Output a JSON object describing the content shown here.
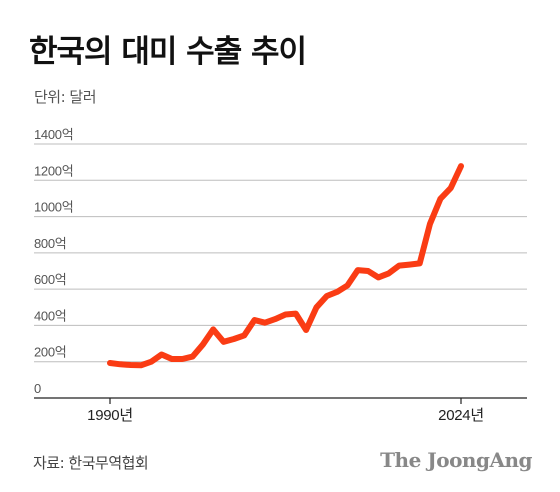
{
  "title": "한국의 대미 수출 추이",
  "unit_label": "단위: 달러",
  "source": "자료: 한국무역협회",
  "brand": "The JoongAng",
  "colors": {
    "line": "#fa3c14",
    "grid": "#bdbdbd",
    "axis": "#222222",
    "text": "#555555"
  },
  "chart_data": {
    "type": "line",
    "title": "한국의 대미 수출 추이",
    "ylabel": "단위: 달러",
    "ylim": [
      0,
      1400
    ],
    "y_ticks": [
      {
        "value": 0,
        "label": "0"
      },
      {
        "value": 200,
        "label": "200억"
      },
      {
        "value": 400,
        "label": "400억"
      },
      {
        "value": 600,
        "label": "600억"
      },
      {
        "value": 800,
        "label": "800억"
      },
      {
        "value": 1000,
        "label": "1000억"
      },
      {
        "value": 1200,
        "label": "1200억"
      },
      {
        "value": 1400,
        "label": "1400억"
      }
    ],
    "xlim": [
      1990,
      2024
    ],
    "x_ticks": [
      {
        "value": 1990,
        "label": "1990년"
      },
      {
        "value": 2024,
        "label": "2024년"
      }
    ],
    "grid": true,
    "series": [
      {
        "x": [
          1990,
          1991,
          1992,
          1993,
          1994,
          1995,
          1996,
          1997,
          1998,
          1999,
          2000,
          2001,
          2002,
          2003,
          2004,
          2005,
          2006,
          2007,
          2008,
          2009,
          2010,
          2011,
          2012,
          2013,
          2014,
          2015,
          2016,
          2017,
          2018,
          2019,
          2020,
          2021,
          2022,
          2023,
          2024
        ],
        "values": [
          193,
          186,
          182,
          180,
          200,
          240,
          215,
          215,
          228,
          295,
          378,
          310,
          325,
          345,
          430,
          415,
          435,
          460,
          465,
          375,
          500,
          562,
          585,
          620,
          705,
          700,
          665,
          687,
          730,
          735,
          742,
          960,
          1098,
          1157,
          1278
        ]
      }
    ]
  }
}
